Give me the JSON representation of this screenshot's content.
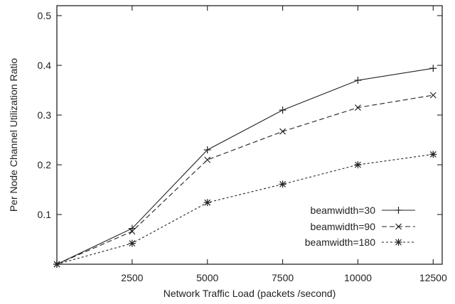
{
  "chart_data": {
    "type": "line",
    "title": "",
    "xlabel": "Network Traffic Load (packets /second)",
    "ylabel": "Per Node Channel Utilization Ratio",
    "xlim": [
      0,
      12800
    ],
    "ylim": [
      0,
      0.52
    ],
    "x_ticks": [
      2500,
      5000,
      7500,
      10000,
      12500
    ],
    "y_ticks": [
      0.1,
      0.2,
      0.3,
      0.4,
      0.5
    ],
    "grid": false,
    "legend_position": "bottom-right",
    "series": [
      {
        "name": "beamwidth=30",
        "marker": "plus",
        "line_style": "solid",
        "x": [
          0,
          2500,
          5000,
          7500,
          10000,
          12500
        ],
        "y": [
          0,
          0.072,
          0.23,
          0.31,
          0.37,
          0.394
        ]
      },
      {
        "name": "beamwidth=90",
        "marker": "cross",
        "line_style": "dashed",
        "x": [
          0,
          2500,
          5000,
          7500,
          10000,
          12500
        ],
        "y": [
          0,
          0.066,
          0.21,
          0.267,
          0.315,
          0.34
        ]
      },
      {
        "name": "beamwidth=180",
        "marker": "asterisk",
        "line_style": "dotted",
        "x": [
          0,
          2500,
          5000,
          7500,
          10000,
          12500
        ],
        "y": [
          0,
          0.042,
          0.124,
          0.161,
          0.2,
          0.221
        ]
      }
    ]
  }
}
